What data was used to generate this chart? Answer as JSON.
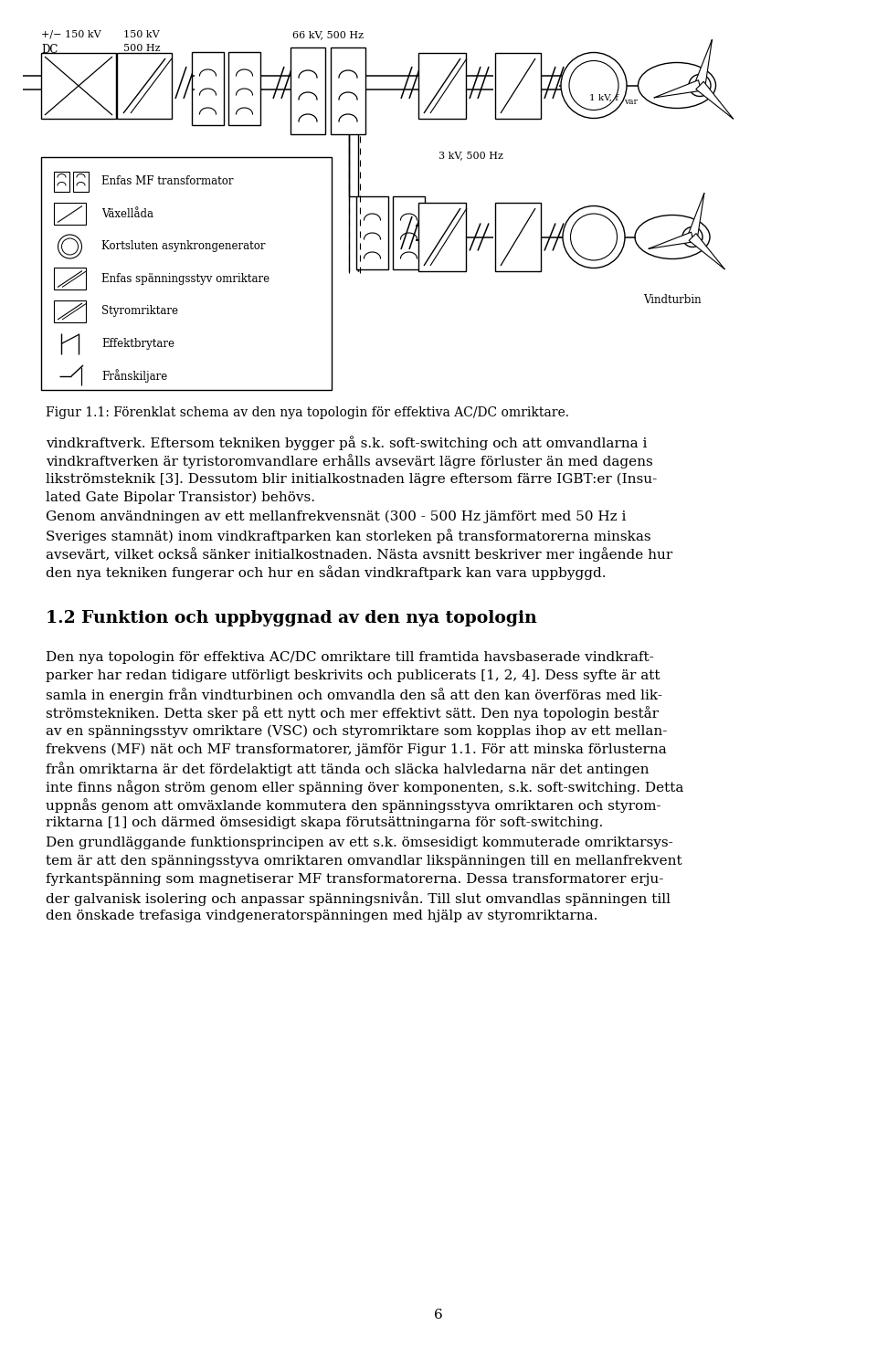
{
  "page_width": 9.6,
  "page_height": 14.75,
  "bg_color": "#ffffff",
  "text_color": "#000000",
  "figure_caption": "Figur 1.1: Förenklat schema av den nya topologin för effektiva AC/DC omriktare.",
  "section_heading": "1.2 Funktion och uppbyggnad av den nya topologin",
  "para0_lines": [
    "vindkraftverk. Eftersom tekniken bygger på s.k. soft-switching och att omvandlarna i",
    "vindkraftverken är tyristoromvandlare erhålls avsevärt lägre förluster än med dagens",
    "likströmsteknik [3]. Dessutom blir initialkostnaden lägre eftersom färre IGBT:er (Insu-",
    "lated Gate Bipolar Transistor) behövs."
  ],
  "para1_lines": [
    "Genom användningen av ett mellanfrekvensnät (300 - 500 Hz jämfört med 50 Hz i",
    "Sveriges stamnät) inom vindkraftparken kan storleken på transformatorerna minskas",
    "avsevärt, vilket också sänker initialkostnaden. Nästa avsnitt beskriver mer ingående hur",
    "den nya tekniken fungerar och hur en sådan vindkraftpark kan vara uppbyggd."
  ],
  "para2_lines": [
    "Den nya topologin för effektiva AC/DC omriktare till framtida havsbaserade vindkraft-",
    "parker har redan tidigare utförligt beskrivits och publicerats [1, 2, 4]. Dess syfte är att",
    "samla in energin från vindturbinen och omvandla den så att den kan överföras med lik-",
    "strömstekniken. Detta sker på ett nytt och mer effektivt sätt. Den nya topologin består",
    "av en spänningsstyv omriktare (VSC) och styromriktare som kopplas ihop av ett mellan-",
    "frekvens (MF) nät och MF transformatorer, jämför Figur 1.1. För att minska förlusterna",
    "från omriktarna är det fördelaktigt att tända och släcka halvledarna när det antingen",
    "inte finns någon ström genom eller spänning över komponenten, s.k. soft-switching. Detta",
    "uppnås genom att omväxlande kommutera den spänningsstyva omriktaren och styrom-",
    "riktarna [1] och därmed ömsesidigt skapa förutsättningarna för soft-switching."
  ],
  "para3_lines": [
    "Den grundläggande funktionsprincipen av ett s.k. ömsesidigt kommuterade omriktarsys-",
    "tem är att den spänningsstyva omriktaren omvandlar likspänningen till en mellanfrekvent",
    "fyrkantspänning som magnetiserar MF transformatorerna. Dessa transformatorer erju-",
    "der galvanisk isolering och anpassar spänningsnivån. Till slut omvandlas spänningen till",
    "den önskade trefasiga vindgeneratorspänningen med hjälp av styromriktarna."
  ],
  "page_number": "6",
  "font_size_body": 11.0,
  "font_size_caption": 10.5,
  "font_size_heading": 13.5,
  "legend_items": [
    "Enfas MF transformator",
    "Växellåda",
    "Kortsluten asynkrongenerator",
    "Enfas spänningsstyv omriktare",
    "Styromriktare",
    "Effektbrytare",
    "Frånskiljare"
  ],
  "label_dc_1": "+/− 150 kV",
  "label_dc_2": "DC",
  "label_150_1": "150 kV",
  "label_150_2": "500 Hz",
  "label_66": "66 kV, 500 Hz",
  "label_1kv": "1 kV, f",
  "label_var": "var",
  "label_3kv": "3 kV, 500 Hz",
  "label_vindturbin": "Vindturbin"
}
